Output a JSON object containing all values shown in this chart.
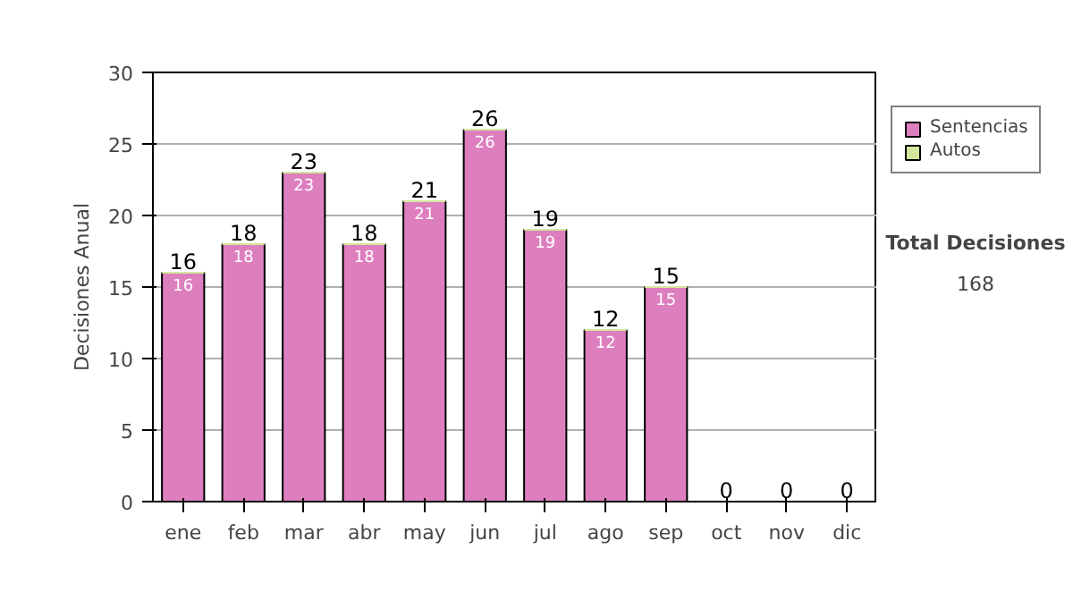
{
  "chart_data": {
    "type": "bar",
    "stacked": true,
    "ylabel": "Decisiones Anual",
    "categories": [
      "ene",
      "feb",
      "mar",
      "abr",
      "may",
      "jun",
      "jul",
      "ago",
      "sep",
      "oct",
      "nov",
      "dic"
    ],
    "series": [
      {
        "name": "Sentencias",
        "color": "#dd7fbf",
        "values": [
          16,
          18,
          23,
          18,
          21,
          26,
          19,
          12,
          15,
          0,
          0,
          0
        ],
        "value_labels": [
          "16",
          "18",
          "23",
          "18",
          "21",
          "26",
          "19",
          "12",
          "15",
          null,
          null,
          null
        ]
      },
      {
        "name": "Autos",
        "color": "#d3e89e",
        "values": [
          0,
          0,
          0,
          0,
          0,
          0,
          0,
          0,
          0,
          0,
          0,
          0
        ]
      }
    ],
    "totals": [
      "16",
      "18",
      "23",
      "18",
      "21",
      "26",
      "19",
      "12",
      "15",
      "0",
      "0",
      "0"
    ],
    "ylim": [
      0,
      30
    ],
    "yticks": [
      0,
      5,
      10,
      15,
      20,
      25,
      30
    ],
    "grid": "y",
    "legend": "right",
    "annotations": [
      "Total Decisiones",
      "168"
    ]
  }
}
